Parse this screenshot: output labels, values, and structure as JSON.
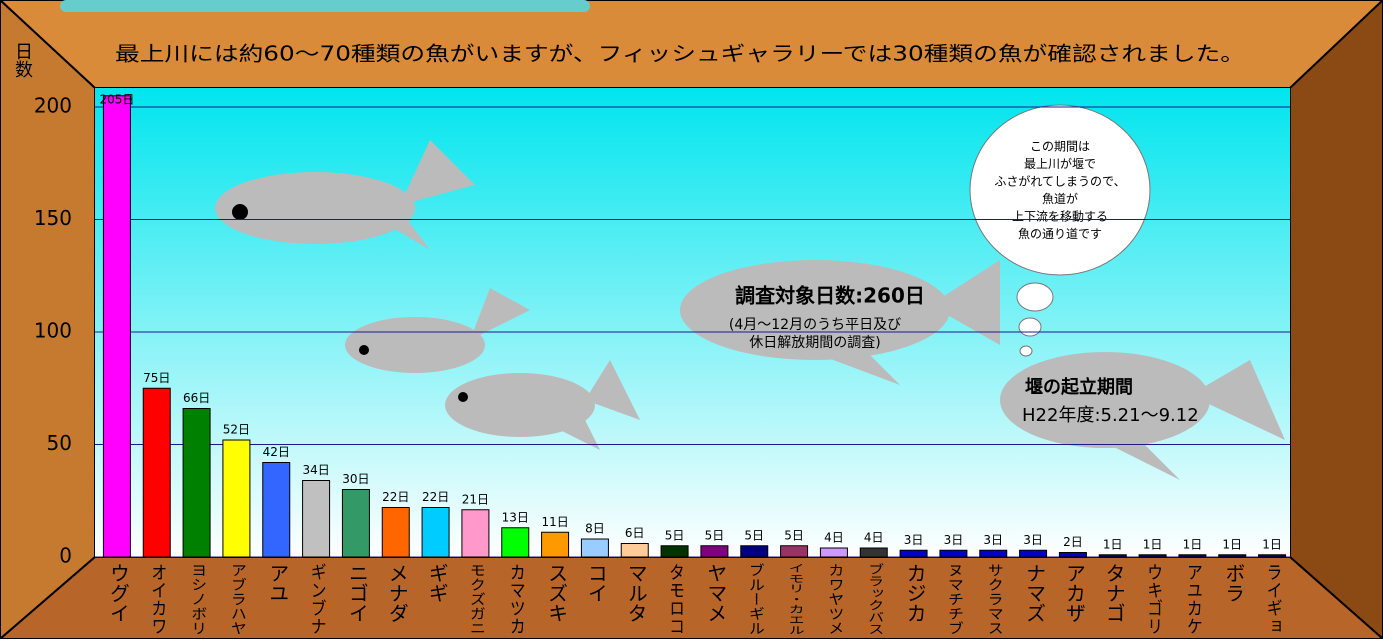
{
  "chart_data": {
    "type": "bar",
    "title": "最上川には約60～70種類の魚がいますが、フィッシュギャラリーでは30種類の魚が確認されました。",
    "y_label": "日数",
    "categories": [
      "ウグイ",
      "オイカワ",
      "ヨシノボリ",
      "アブラハヤ",
      "アユ",
      "ギンブナ",
      "ニゴイ",
      "メナダ",
      "ギギ",
      "モクズガニ",
      "カマツカ",
      "スズキ",
      "コイ",
      "マルタ",
      "タモロコ",
      "ヤマメ",
      "ブルーギル",
      "イモリ・カエル",
      "カワヤツメ",
      "ブラックバス",
      "カジカ",
      "ヌマチチブ",
      "サクラマス",
      "ナマズ",
      "アカザ",
      "タナゴ",
      "ウキゴリ",
      "アユカケ",
      "ボラ",
      "ライギョ"
    ],
    "values": [
      205,
      75,
      66,
      52,
      42,
      34,
      30,
      22,
      22,
      21,
      13,
      11,
      8,
      6,
      5,
      5,
      5,
      5,
      4,
      4,
      3,
      3,
      3,
      3,
      2,
      1,
      1,
      1,
      1,
      1
    ],
    "value_labels": [
      "205日",
      "75日",
      "66日",
      "52日",
      "42日",
      "34日",
      "30日",
      "22日",
      "22日",
      "21日",
      "13日",
      "11日",
      "8日",
      "6日",
      "5日",
      "5日",
      "5日",
      "5日",
      "4日",
      "4日",
      "3日",
      "3日",
      "3日",
      "3日",
      "2日",
      "1日",
      "1日",
      "1日",
      "1日",
      "1日"
    ],
    "colors": [
      "#ff00ff",
      "#ff0000",
      "#008000",
      "#ffff00",
      "#3366ff",
      "#c0c0c0",
      "#339966",
      "#ff6600",
      "#00ccff",
      "#ff99cc",
      "#00ff00",
      "#ff9900",
      "#99ccff",
      "#ffcc99",
      "#003300",
      "#800080",
      "#000080",
      "#993366",
      "#cc99ff",
      "#333333",
      "#0000cc",
      "#0000cc",
      "#0000cc",
      "#0000cc",
      "#0000cc",
      "#000099",
      "#000099",
      "#000099",
      "#000099",
      "#000099"
    ],
    "ylim": [
      0,
      208
    ],
    "yticks": [
      0,
      50,
      100,
      150,
      200
    ],
    "grid": true,
    "survey_title": "調査対象日数:260日",
    "survey_note": [
      "(4月～12月のうち平日及び",
      "休日解放期間の調査)"
    ],
    "weir_title": "堰の起立期間",
    "weir_period": "H22年度:5.21～9.12",
    "cloud_text": [
      "この期間は",
      "最上川が堰で",
      "ふさがれてしまうので、",
      "魚道が",
      "上下流を移動する",
      "魚の通り道です"
    ]
  }
}
